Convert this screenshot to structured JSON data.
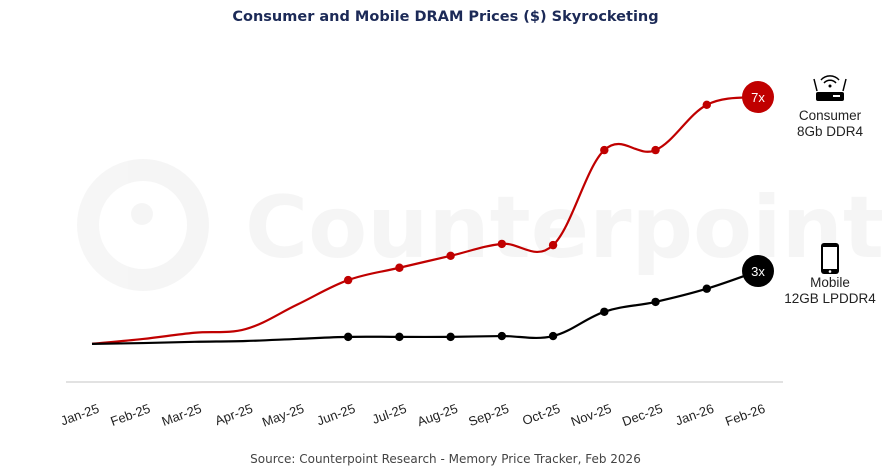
{
  "chart_data": {
    "type": "line",
    "title": "Consumer and Mobile DRAM Prices ($) Skyrocketing",
    "categories": [
      "Jan-25",
      "Feb-25",
      "Mar-25",
      "Apr-25",
      "May-25",
      "Jun-25",
      "Jul-25",
      "Aug-25",
      "Sep-25",
      "Oct-25",
      "Nov-25",
      "Dec-25",
      "Jan-26",
      "Feb-26"
    ],
    "ylim": [
      0,
      7.9
    ],
    "grid": false,
    "y_axis_visible": false,
    "series": [
      {
        "name": "Consumer 8Gb DDR4",
        "label_lines": [
          "Consumer",
          "8Gb DDR4"
        ],
        "color": "#c00000",
        "icon": "router-icon",
        "end_badge": "7x",
        "values": [
          1,
          1.12,
          1.27,
          1.36,
          1.95,
          2.55,
          2.85,
          3.14,
          3.43,
          3.4,
          5.71,
          5.71,
          6.81,
          7.0
        ]
      },
      {
        "name": "Mobile 12GB LPDDR4",
        "label_lines": [
          "Mobile",
          "12GB LPDDR4"
        ],
        "color": "#000000",
        "icon": "smartphone-icon",
        "end_badge": "3x",
        "values": [
          1,
          1.02,
          1.05,
          1.07,
          1.12,
          1.17,
          1.17,
          1.17,
          1.19,
          1.19,
          1.78,
          2.02,
          2.34,
          2.77
        ]
      }
    ],
    "source": "Source: Counterpoint Research - Memory Price Tracker, Feb 2026"
  },
  "watermark": "Counterpoint"
}
